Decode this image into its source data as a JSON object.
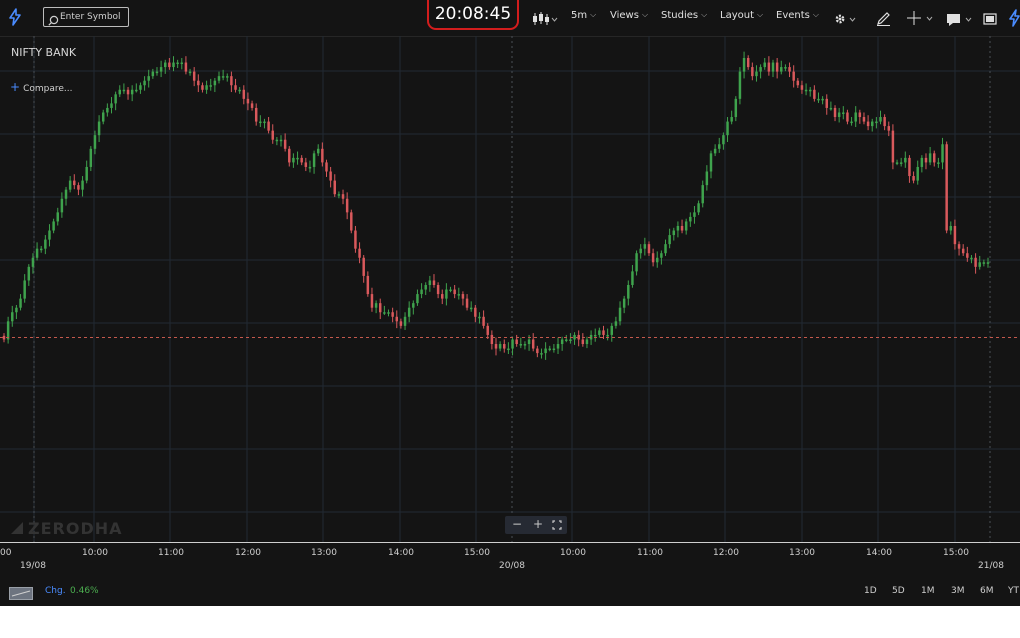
{
  "toolbar": {
    "symbol_placeholder": "Enter Symbol",
    "clock": "20:08:45",
    "interval": "5m",
    "views": "Views",
    "studies": "Studies",
    "layout": "Layout",
    "events": "Events"
  },
  "instrument": "NIFTY BANK",
  "compare_label": "Compare...",
  "watermark": "ZERODHA",
  "xaxis": {
    "ticks": [
      "10:00",
      "11:00",
      "12:00",
      "13:00",
      "14:00",
      "15:00",
      "10:00",
      "11:00",
      "12:00",
      "13:00",
      "14:00",
      "15:00"
    ],
    "edge_left": "00",
    "date_left": "19/08",
    "date_mid": "20/08",
    "date_right": "21/08"
  },
  "bottom": {
    "chg_label": "Chg.",
    "chg_value": "0.46%",
    "ranges": [
      "1D",
      "5D",
      "1M",
      "3M",
      "6M",
      "YT"
    ]
  },
  "colors": {
    "up": "#3fa34d",
    "down": "#d9595c",
    "accent": "#2f7bf5",
    "clock_border": "#d31d1d"
  },
  "chart_data": {
    "type": "candlestick",
    "close_path": [
      0.55,
      0.55,
      0.55,
      0.54,
      0.56,
      0.56,
      0.57,
      0.58,
      0.59,
      0.63,
      0.62,
      0.81,
      0.77,
      0.77,
      0.79,
      0.77,
      0.78,
      0.76,
      0.73,
      0.74,
      0.78,
      0.77,
      0.77,
      0.77,
      0.84,
      0.85,
      0.87,
      0.86,
      0.86,
      0.85,
      0.86,
      0.87,
      0.88,
      0.86,
      0.86,
      0.88,
      0.88,
      0.87,
      0.89,
      0.89,
      0.91,
      0.91,
      0.91,
      0.93,
      0.93,
      0.93,
      0.94,
      0.95,
      0.97,
      0.98,
      0.98,
      0.97,
      0.99,
      0.97,
      0.99,
      0.98,
      0.97,
      0.96,
      0.98,
      1.0,
      0.97,
      0.91,
      0.87,
      0.86,
      0.83,
      0.81,
      0.8,
      0.79,
      0.75,
      0.72,
      0.68,
      0.66,
      0.65,
      0.64,
      0.62,
      0.63,
      0.62,
      0.61,
      0.59,
      0.57,
      0.56,
      0.55,
      0.57,
      0.59,
      0.58,
      0.57,
      0.53,
      0.5,
      0.47,
      0.45,
      0.42,
      0.41,
      0.39,
      0.39,
      0.4,
      0.39,
      0.39,
      0.38,
      0.37,
      0.38,
      0.39,
      0.38,
      0.38,
      0.38,
      0.37,
      0.36,
      0.36,
      0.36,
      0.35,
      0.35,
      0.36,
      0.38,
      0.37,
      0.37,
      0.37,
      0.38,
      0.36,
      0.36,
      0.37,
      0.36,
      0.37,
      0.39,
      0.41,
      0.43,
      0.43,
      0.45,
      0.45,
      0.47,
      0.48,
      0.48,
      0.49,
      0.49,
      0.47,
      0.48,
      0.5,
      0.51,
      0.5,
      0.49,
      0.48,
      0.46,
      0.45,
      0.43,
      0.41,
      0.42,
      0.43,
      0.44,
      0.44,
      0.44,
      0.46,
      0.45,
      0.48,
      0.52,
      0.56,
      0.58,
      0.62,
      0.66,
      0.69,
      0.7,
      0.7,
      0.73,
      0.75,
      0.77,
      0.8,
      0.79,
      0.76,
      0.76,
      0.77,
      0.78,
      0.78,
      0.77,
      0.8,
      0.82,
      0.82,
      0.82,
      0.84,
      0.86,
      0.86,
      0.86,
      0.89,
      0.9,
      0.91,
      0.93,
      0.93,
      0.94,
      0.96,
      0.96,
      0.96,
      0.95,
      0.94,
      0.94,
      0.93,
      0.94,
      0.95,
      0.97,
      0.97,
      0.99,
      0.99,
      0.99,
      0.98,
      0.99,
      0.98,
      0.97,
      0.97,
      0.96,
      0.95,
      0.94,
      0.93,
      0.93,
      0.92,
      0.93,
      0.93,
      0.92,
      0.9,
      0.89,
      0.88,
      0.86,
      0.83,
      0.8,
      0.76,
      0.73,
      0.71,
      0.72,
      0.73,
      0.71,
      0.69,
      0.66,
      0.64,
      0.62,
      0.6,
      0.58,
      0.58,
      0.56,
      0.54,
      0.51,
      0.47,
      0.45,
      0.44,
      0.42,
      0.38
    ],
    "value_range": [
      0,
      1
    ],
    "last_price_level": 0.38,
    "x_labels": [
      "10:00",
      "11:00",
      "12:00",
      "13:00",
      "14:00",
      "15:00",
      "10:00",
      "11:00",
      "12:00",
      "13:00",
      "14:00",
      "15:00"
    ],
    "date_labels": [
      "19/08",
      "20/08",
      "21/08"
    ],
    "grid": true
  }
}
